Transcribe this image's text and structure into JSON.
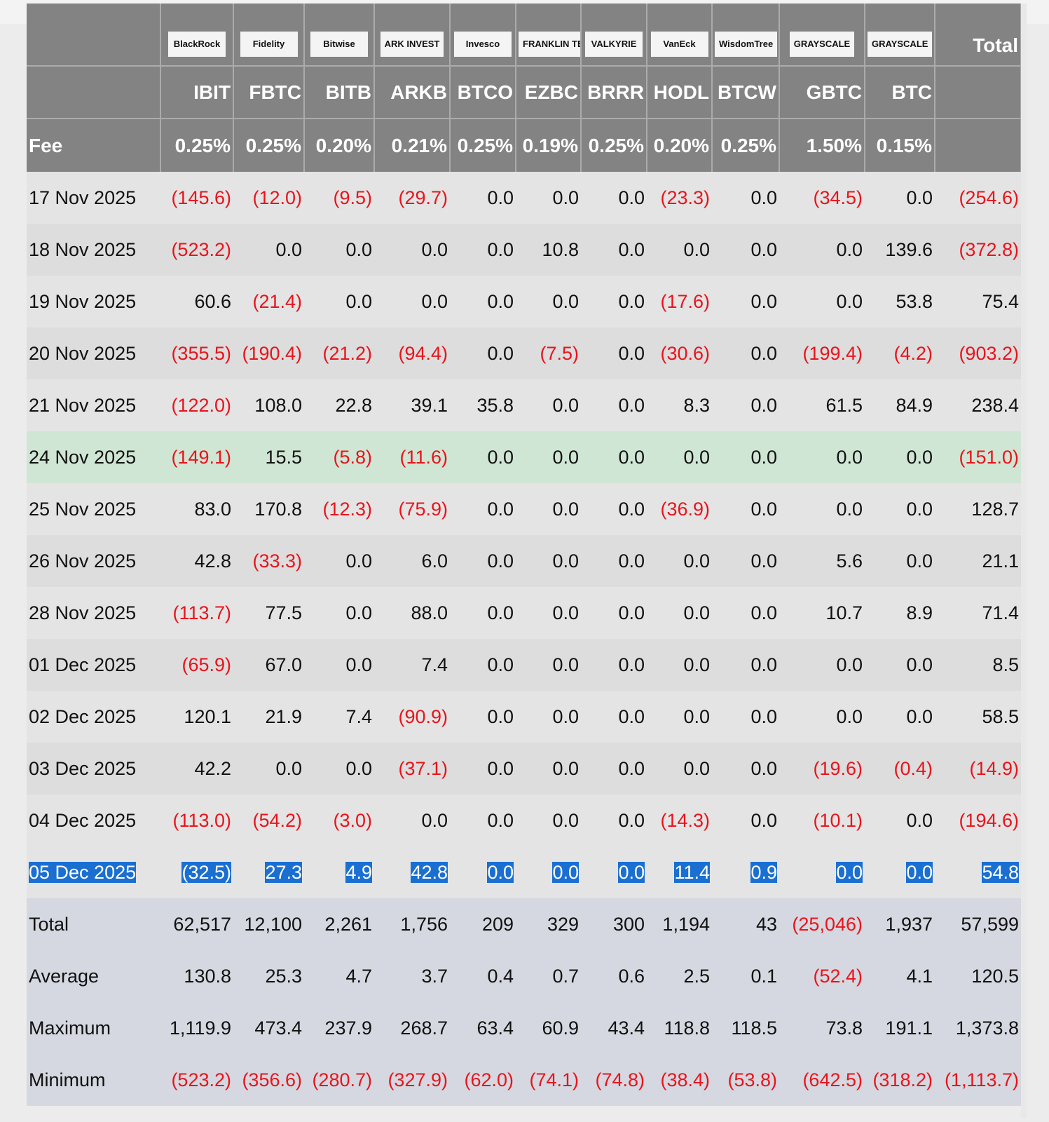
{
  "header": {
    "logos": [
      "BlackRock",
      "Fidelity",
      "Bitwise",
      "ARK INVEST",
      "Invesco",
      "FRANKLIN TEMPLETON",
      "VALKYRIE",
      "VanEck",
      "WisdomTree",
      "GRAYSCALE",
      "GRAYSCALE"
    ],
    "total_label": "Total",
    "tickers": [
      "IBIT",
      "FBTC",
      "BITB",
      "ARKB",
      "BTCO",
      "EZBC",
      "BRRR",
      "HODL",
      "BTCW",
      "GBTC",
      "BTC"
    ],
    "fee_label": "Fee",
    "fees": [
      "0.25%",
      "0.25%",
      "0.20%",
      "0.21%",
      "0.25%",
      "0.19%",
      "0.25%",
      "0.20%",
      "0.25%",
      "1.50%",
      "0.15%"
    ]
  },
  "rows": [
    {
      "date": "17 Nov 2025",
      "values": [
        "(145.6)",
        "(12.0)",
        "(9.5)",
        "(29.7)",
        "0.0",
        "0.0",
        "0.0",
        "(23.3)",
        "0.0",
        "(34.5)",
        "0.0",
        "(254.6)"
      ]
    },
    {
      "date": "18 Nov 2025",
      "values": [
        "(523.2)",
        "0.0",
        "0.0",
        "0.0",
        "0.0",
        "10.8",
        "0.0",
        "0.0",
        "0.0",
        "0.0",
        "139.6",
        "(372.8)"
      ]
    },
    {
      "date": "19 Nov 2025",
      "values": [
        "60.6",
        "(21.4)",
        "0.0",
        "0.0",
        "0.0",
        "0.0",
        "0.0",
        "(17.6)",
        "0.0",
        "0.0",
        "53.8",
        "75.4"
      ]
    },
    {
      "date": "20 Nov 2025",
      "values": [
        "(355.5)",
        "(190.4)",
        "(21.2)",
        "(94.4)",
        "0.0",
        "(7.5)",
        "0.0",
        "(30.6)",
        "0.0",
        "(199.4)",
        "(4.2)",
        "(903.2)"
      ]
    },
    {
      "date": "21 Nov 2025",
      "values": [
        "(122.0)",
        "108.0",
        "22.8",
        "39.1",
        "35.8",
        "0.0",
        "0.0",
        "8.3",
        "0.0",
        "61.5",
        "84.9",
        "238.4"
      ]
    },
    {
      "date": "24 Nov 2025",
      "values": [
        "(149.1)",
        "15.5",
        "(5.8)",
        "(11.6)",
        "0.0",
        "0.0",
        "0.0",
        "0.0",
        "0.0",
        "0.0",
        "0.0",
        "(151.0)"
      ]
    },
    {
      "date": "25 Nov 2025",
      "values": [
        "83.0",
        "170.8",
        "(12.3)",
        "(75.9)",
        "0.0",
        "0.0",
        "0.0",
        "(36.9)",
        "0.0",
        "0.0",
        "0.0",
        "128.7"
      ]
    },
    {
      "date": "26 Nov 2025",
      "values": [
        "42.8",
        "(33.3)",
        "0.0",
        "6.0",
        "0.0",
        "0.0",
        "0.0",
        "0.0",
        "0.0",
        "5.6",
        "0.0",
        "21.1"
      ]
    },
    {
      "date": "28 Nov 2025",
      "values": [
        "(113.7)",
        "77.5",
        "0.0",
        "88.0",
        "0.0",
        "0.0",
        "0.0",
        "0.0",
        "0.0",
        "10.7",
        "8.9",
        "71.4"
      ]
    },
    {
      "date": "01 Dec 2025",
      "values": [
        "(65.9)",
        "67.0",
        "0.0",
        "7.4",
        "0.0",
        "0.0",
        "0.0",
        "0.0",
        "0.0",
        "0.0",
        "0.0",
        "8.5"
      ]
    },
    {
      "date": "02 Dec 2025",
      "values": [
        "120.1",
        "21.9",
        "7.4",
        "(90.9)",
        "0.0",
        "0.0",
        "0.0",
        "0.0",
        "0.0",
        "0.0",
        "0.0",
        "58.5"
      ]
    },
    {
      "date": "03 Dec 2025",
      "values": [
        "42.2",
        "0.0",
        "0.0",
        "(37.1)",
        "0.0",
        "0.0",
        "0.0",
        "0.0",
        "0.0",
        "(19.6)",
        "(0.4)",
        "(14.9)"
      ]
    },
    {
      "date": "04 Dec 2025",
      "values": [
        "(113.0)",
        "(54.2)",
        "(3.0)",
        "0.0",
        "0.0",
        "0.0",
        "0.0",
        "(14.3)",
        "0.0",
        "(10.1)",
        "0.0",
        "(194.6)"
      ]
    },
    {
      "date": "05 Dec 2025",
      "values": [
        "(32.5)",
        "27.3",
        "4.9",
        "42.8",
        "0.0",
        "0.0",
        "0.0",
        "11.4",
        "0.9",
        "0.0",
        "0.0",
        "54.8"
      ]
    }
  ],
  "highlighted_row_date": "24 Nov 2025",
  "selected_row_date": "05 Dec 2025",
  "summary": [
    {
      "label": "Total",
      "values": [
        "62,517",
        "12,100",
        "2,261",
        "1,756",
        "209",
        "329",
        "300",
        "1,194",
        "43",
        "(25,046)",
        "1,937",
        "57,599"
      ]
    },
    {
      "label": "Average",
      "values": [
        "130.8",
        "25.3",
        "4.7",
        "3.7",
        "0.4",
        "0.7",
        "0.6",
        "2.5",
        "0.1",
        "(52.4)",
        "4.1",
        "120.5"
      ]
    },
    {
      "label": "Maximum",
      "values": [
        "1,119.9",
        "473.4",
        "237.9",
        "268.7",
        "63.4",
        "60.9",
        "43.4",
        "118.8",
        "118.5",
        "73.8",
        "191.1",
        "1,373.8"
      ]
    },
    {
      "label": "Minimum",
      "values": [
        "(523.2)",
        "(356.6)",
        "(280.7)",
        "(327.9)",
        "(62.0)",
        "(74.1)",
        "(74.8)",
        "(38.4)",
        "(53.8)",
        "(642.5)",
        "(318.2)",
        "(1,113.7)"
      ]
    }
  ],
  "colors": {
    "header_bg": "#838383",
    "negative": "#e8141c",
    "highlight_row": "#d0e6d4",
    "selection": "#1a6fd1",
    "summary_bg": "#d5d8e0"
  }
}
